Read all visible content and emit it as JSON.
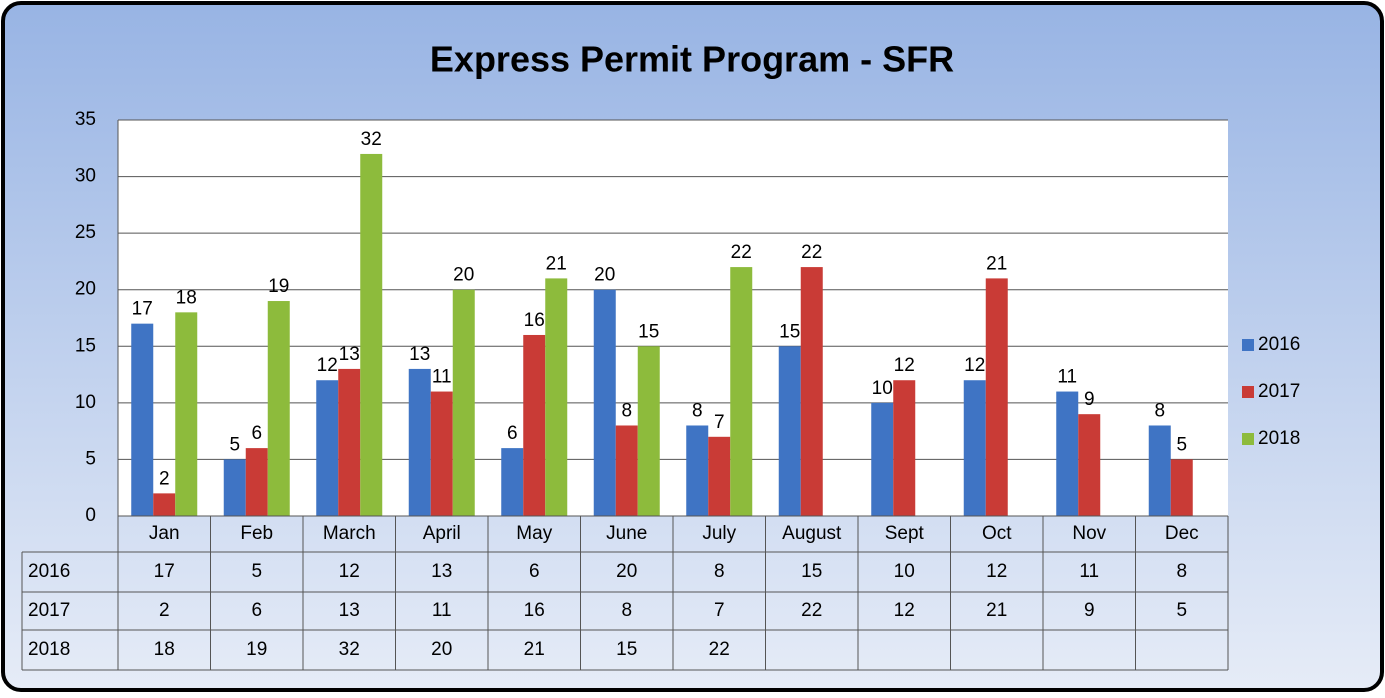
{
  "chart_data": {
    "type": "bar",
    "title": "Express Permit Program - SFR",
    "categories": [
      "Jan",
      "Feb",
      "March",
      "April",
      "May",
      "June",
      "July",
      "August",
      "Sept",
      "Oct",
      "Nov",
      "Dec"
    ],
    "series": [
      {
        "name": "2016",
        "color": "#3f74c4",
        "values": [
          17,
          5,
          12,
          13,
          6,
          20,
          8,
          15,
          10,
          12,
          11,
          8
        ]
      },
      {
        "name": "2017",
        "color": "#c93b36",
        "values": [
          2,
          6,
          13,
          11,
          16,
          8,
          7,
          22,
          12,
          21,
          9,
          5
        ]
      },
      {
        "name": "2018",
        "color": "#8dbb3c",
        "values": [
          18,
          19,
          32,
          20,
          21,
          15,
          22,
          null,
          null,
          null,
          null,
          null
        ]
      }
    ],
    "ylim": [
      0,
      35
    ],
    "yticks": [
      0,
      5,
      10,
      15,
      20,
      25,
      30,
      35
    ],
    "grid": true,
    "legend": "right",
    "data_table": true
  }
}
